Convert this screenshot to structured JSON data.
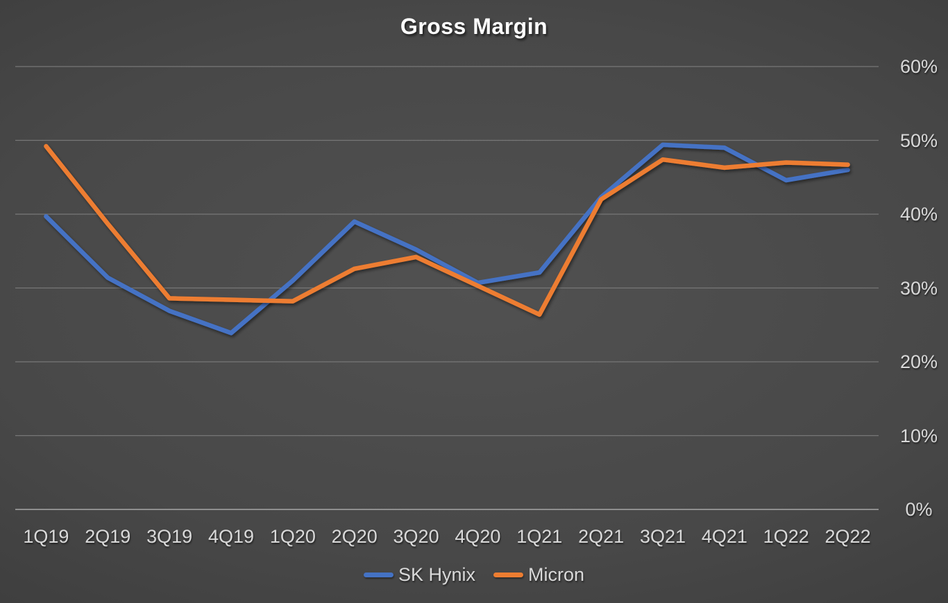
{
  "chart_data": {
    "type": "line",
    "title": "Gross Margin",
    "categories": [
      "1Q19",
      "2Q19",
      "3Q19",
      "4Q19",
      "1Q20",
      "2Q20",
      "3Q20",
      "4Q20",
      "1Q21",
      "2Q21",
      "3Q21",
      "4Q21",
      "1Q22",
      "2Q22"
    ],
    "series": [
      {
        "name": "SK Hynix",
        "color": "#4472C4",
        "values": [
          39.7,
          31.4,
          26.9,
          23.9,
          31.0,
          39.0,
          35.2,
          30.7,
          32.1,
          42.3,
          49.4,
          49.0,
          44.6,
          46.0
        ]
      },
      {
        "name": "Micron",
        "color": "#ED7D31",
        "values": [
          49.2,
          38.7,
          28.6,
          28.4,
          28.2,
          32.6,
          34.2,
          30.3,
          26.4,
          42.0,
          47.4,
          46.3,
          47.0,
          46.7
        ]
      }
    ],
    "y_ticks": [
      0,
      10,
      20,
      30,
      40,
      50,
      60
    ],
    "y_tick_labels": [
      "0%",
      "10%",
      "20%",
      "30%",
      "40%",
      "50%",
      "60%"
    ],
    "ylim": [
      0,
      60
    ],
    "xlabel": "",
    "ylabel": "",
    "y_axis_side": "right",
    "grid": "horizontal",
    "legend_position": "bottom"
  },
  "styles": {
    "title_color": "#FFFFFF",
    "label_color": "#D9D9D9",
    "gridline_color": "#777777",
    "axis_line_color": "#8F8F8F"
  }
}
